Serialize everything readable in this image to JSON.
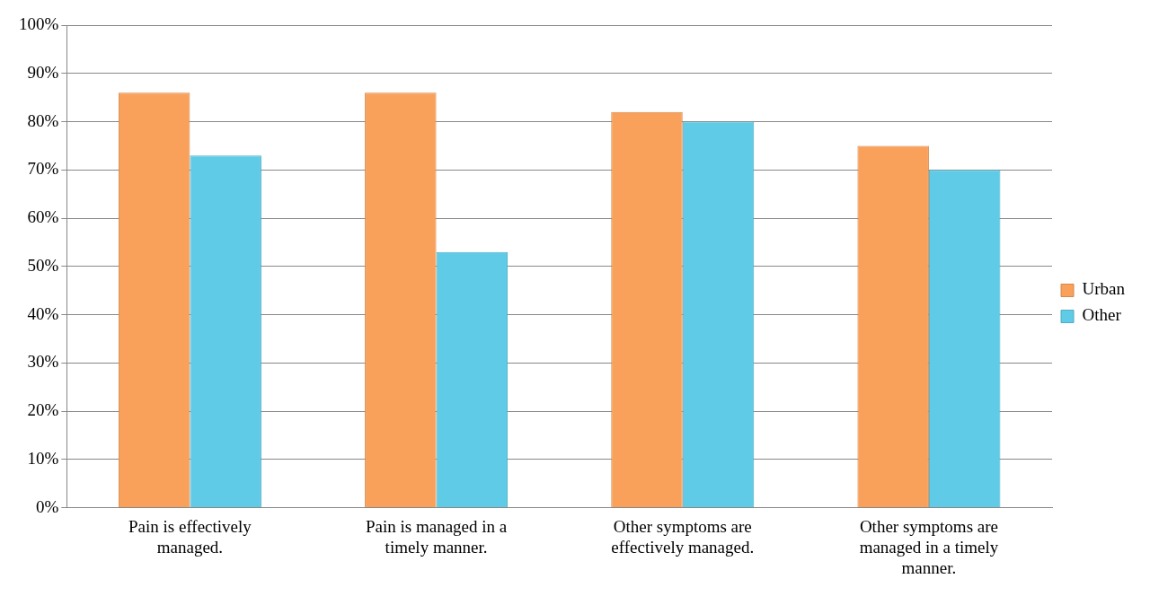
{
  "chart_data": {
    "type": "bar",
    "categories": [
      "Pain is effectively managed.",
      "Pain is managed in a timely manner.",
      "Other symptoms are effectively managed.",
      "Other symptoms are managed in a timely manner."
    ],
    "series": [
      {
        "name": "Urban",
        "color": "#f9a05a",
        "values": [
          86,
          86,
          82,
          75
        ]
      },
      {
        "name": "Other",
        "color": "#5fcbe6",
        "values": [
          73,
          53,
          80,
          70
        ]
      }
    ],
    "ylim": [
      0,
      100
    ],
    "yticks": [
      {
        "value": 0,
        "label": "0%"
      },
      {
        "value": 10,
        "label": "10%"
      },
      {
        "value": 20,
        "label": "20%"
      },
      {
        "value": 30,
        "label": "30%"
      },
      {
        "value": 40,
        "label": "40%"
      },
      {
        "value": 50,
        "label": "50%"
      },
      {
        "value": 60,
        "label": "60%"
      },
      {
        "value": 70,
        "label": "70%"
      },
      {
        "value": 80,
        "label": "80%"
      },
      {
        "value": 90,
        "label": "90%"
      },
      {
        "value": 100,
        "label": "100%"
      }
    ],
    "grid": "y",
    "legend": "right"
  }
}
